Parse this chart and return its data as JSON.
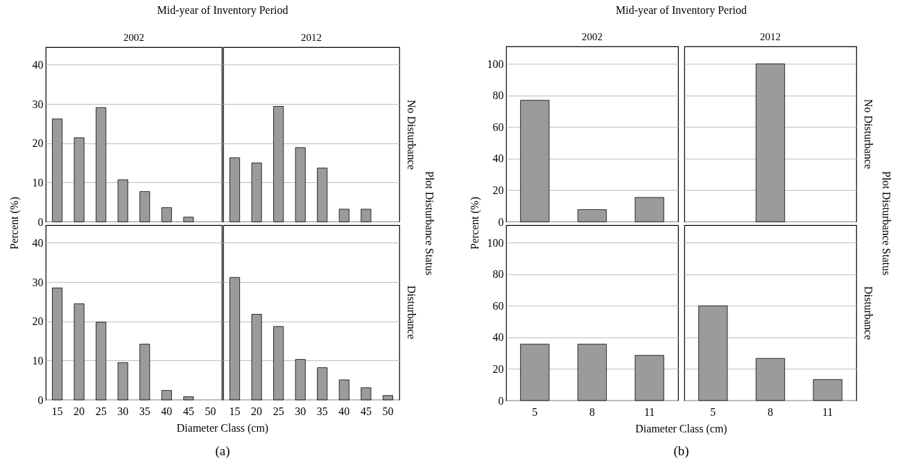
{
  "chart_data": [
    {
      "type": "bar",
      "title": "2002",
      "ylabel": "Percent (%)",
      "annotations": [
        "Mid-year of Inventory Period",
        "Plot Disturbance Status",
        "(a)"
      ],
      "categories": [
        "15",
        "20",
        "25",
        "30",
        "35",
        "40",
        "45",
        "50"
      ],
      "values": [
        26.2,
        21.4,
        29.1,
        10.7,
        7.7,
        3.6,
        1.2,
        null
      ],
      "color": "#9b9b9b",
      "ylim": [
        0,
        44.5
      ],
      "yticks": [
        0,
        10,
        20,
        30,
        40
      ],
      "grid": "y",
      "tick_labels": "y"
    },
    {
      "type": "bar",
      "title": "2012",
      "y2label": "No Disturbance",
      "categories": [
        "15",
        "20",
        "25",
        "30",
        "35",
        "40",
        "45",
        "50"
      ],
      "values": [
        16.3,
        15.0,
        29.4,
        18.9,
        13.7,
        3.2,
        3.2,
        null
      ],
      "color": "#9b9b9b",
      "ylim": [
        0,
        44.5
      ],
      "yticks": [
        0,
        10,
        20,
        30,
        40
      ],
      "grid": "y",
      "tick_labels": false
    },
    {
      "type": "bar",
      "xlabel": "Diameter Class (cm)",
      "categories": [
        "15",
        "20",
        "25",
        "30",
        "35",
        "40",
        "45",
        "50"
      ],
      "values": [
        28.5,
        24.5,
        19.8,
        9.5,
        14.2,
        2.4,
        0.8,
        null
      ],
      "color": "#9b9b9b",
      "ylim": [
        0,
        44.5
      ],
      "yticks": [
        0,
        10,
        20,
        30,
        40
      ],
      "grid": "y"
    },
    {
      "type": "bar",
      "y2label": "Disturbance",
      "categories": [
        "15",
        "20",
        "25",
        "30",
        "35",
        "40",
        "45",
        "50"
      ],
      "values": [
        31.2,
        21.8,
        18.7,
        10.3,
        8.2,
        5.1,
        3.1,
        1.1
      ],
      "color": "#9b9b9b",
      "ylim": [
        0,
        44.5
      ],
      "yticks": [
        0,
        10,
        20,
        30,
        40
      ],
      "grid": "y",
      "tick_labels": "x"
    },
    {
      "type": "bar",
      "title": "2002",
      "ylabel": "Percent (%)",
      "annotations": [
        "Mid-year of Inventory Period",
        "Plot Disturbance Status",
        "(b)"
      ],
      "categories": [
        "5",
        "8",
        "11"
      ],
      "values": [
        76.9,
        7.7,
        15.4
      ],
      "color": "#9b9b9b",
      "ylim": [
        0,
        111
      ],
      "yticks": [
        0,
        20,
        40,
        60,
        80,
        100
      ],
      "grid": "y",
      "tick_labels": "y"
    },
    {
      "type": "bar",
      "title": "2012",
      "y2label": "No Disturbance",
      "categories": [
        "5",
        "8",
        "11"
      ],
      "values": [
        null,
        100,
        null
      ],
      "color": "#9b9b9b",
      "ylim": [
        0,
        111
      ],
      "yticks": [
        0,
        20,
        40,
        60,
        80,
        100
      ],
      "grid": "y",
      "tick_labels": false
    },
    {
      "type": "bar",
      "xlabel": "Diameter Class (cm)",
      "categories": [
        "5",
        "8",
        "11"
      ],
      "values": [
        35.7,
        35.7,
        28.6
      ],
      "color": "#9b9b9b",
      "ylim": [
        0,
        111
      ],
      "yticks": [
        0,
        20,
        40,
        60,
        80,
        100
      ],
      "grid": "y"
    },
    {
      "type": "bar",
      "y2label": "Disturbance",
      "categories": [
        "5",
        "8",
        "11"
      ],
      "values": [
        60,
        26.7,
        13.3
      ],
      "color": "#9b9b9b",
      "ylim": [
        0,
        111
      ],
      "yticks": [
        0,
        20,
        40,
        60,
        80,
        100
      ],
      "grid": "y",
      "tick_labels": "x"
    }
  ]
}
